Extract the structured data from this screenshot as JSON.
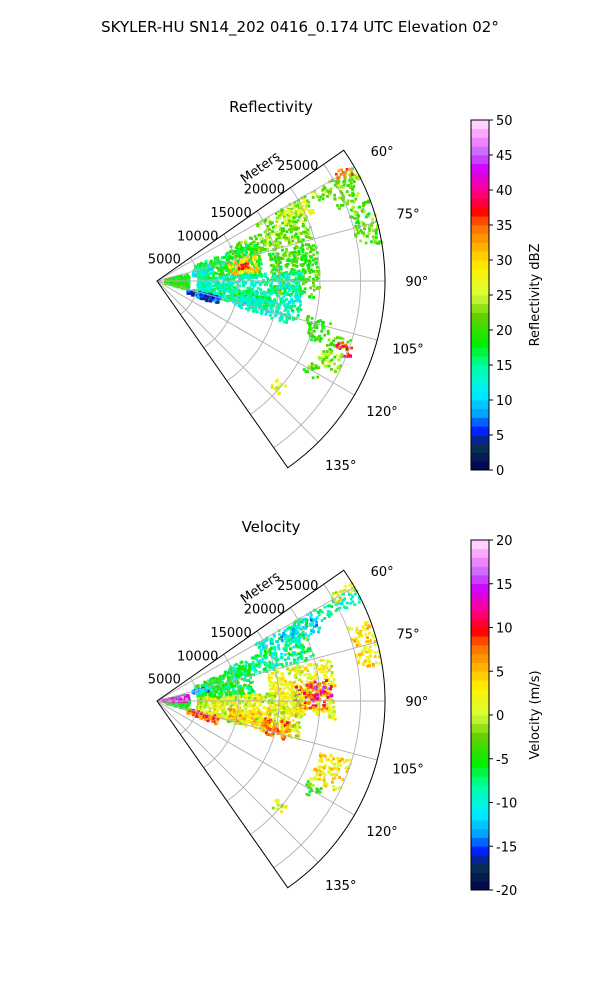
{
  "figure": {
    "title": "SKYLER-HU  SN14_202  0416_0.174 UTC Elevation 02°"
  },
  "chart_data": [
    {
      "type": "heatmap",
      "title": "Reflectivity",
      "radial_label": "Meters",
      "radial_ticks": [
        5000,
        10000,
        15000,
        20000,
        25000
      ],
      "radial_max": 28000,
      "azimuth_range_deg": [
        55,
        145
      ],
      "azimuth_ticks": [
        "60°",
        "75°",
        "90°",
        "105°",
        "120°",
        "135°"
      ],
      "colorbar": {
        "label": "Reflectivity dBZ",
        "range": [
          0,
          50
        ],
        "ticks": [
          0,
          5,
          10,
          15,
          20,
          25,
          30,
          35,
          40,
          45,
          50
        ]
      },
      "echo_regions": [
        {
          "az": 62,
          "r": [
            14000,
            28000
          ],
          "w": 2,
          "v": 22
        },
        {
          "az": 60,
          "r": [
            25500,
            27500
          ],
          "w": 1.5,
          "v": 33
        },
        {
          "az": 66,
          "r": [
            24000,
            27000
          ],
          "w": 2.5,
          "v": 22
        },
        {
          "az": 64,
          "r": [
            17000,
            21000
          ],
          "w": 3,
          "v": 26
        },
        {
          "az": 70,
          "r": [
            10000,
            20000
          ],
          "w": 5,
          "v": 22
        },
        {
          "az": 78,
          "r": [
            5000,
            13000
          ],
          "w": 10,
          "v": 18
        },
        {
          "az": 80,
          "r": [
            9000,
            12500
          ],
          "w": 5,
          "v": 30
        },
        {
          "az": 81,
          "r": [
            10000,
            11500
          ],
          "w": 2,
          "v": 36
        },
        {
          "az": 78,
          "r": [
            4500,
            7000
          ],
          "w": 5,
          "v": 13
        },
        {
          "az": 86,
          "r": [
            14000,
            20000
          ],
          "w": 10,
          "v": 20
        },
        {
          "az": 75,
          "r": [
            25000,
            28000
          ],
          "w": 6,
          "v": 21
        },
        {
          "az": 96,
          "r": [
            5000,
            18000
          ],
          "w": 10,
          "v": 14
        },
        {
          "az": 100,
          "r": [
            9000,
            14000
          ],
          "w": 4,
          "v": 16
        },
        {
          "az": 104,
          "r": [
            10000,
            17000
          ],
          "w": 4,
          "v": 13
        },
        {
          "az": 107,
          "r": [
            19000,
            22000
          ],
          "w": 4,
          "v": 20
        },
        {
          "az": 92,
          "r": [
            1000,
            4000
          ],
          "w": 14,
          "v": 19
        },
        {
          "az": 112,
          "r": [
            22000,
            25000
          ],
          "w": 5,
          "v": 22
        },
        {
          "az": 110,
          "r": [
            23500,
            25500
          ],
          "w": 2,
          "v": 38
        },
        {
          "az": 120,
          "r": [
            21000,
            23000
          ],
          "w": 2,
          "v": 21
        },
        {
          "az": 131,
          "r": [
            19000,
            20500
          ],
          "w": 2,
          "v": 27
        },
        {
          "az": 108,
          "r": [
            4000,
            8000
          ],
          "w": 4,
          "v": 6
        }
      ]
    },
    {
      "type": "heatmap",
      "title": "Velocity",
      "radial_label": "Meters",
      "radial_ticks": [
        5000,
        10000,
        15000,
        20000,
        25000
      ],
      "radial_max": 28000,
      "azimuth_range_deg": [
        55,
        145
      ],
      "azimuth_ticks": [
        "60°",
        "75°",
        "90°",
        "105°",
        "120°",
        "135°"
      ],
      "colorbar": {
        "label": "Velocity (m/s)",
        "range": [
          -20,
          20
        ],
        "ticks": [
          -20,
          -15,
          -10,
          -5,
          0,
          5,
          10,
          15,
          20
        ]
      },
      "echo_regions": [
        {
          "az": 62,
          "r": [
            14000,
            28000
          ],
          "w": 2,
          "v": -9
        },
        {
          "az": 64,
          "r": [
            17000,
            22000
          ],
          "w": 3,
          "v": -11
        },
        {
          "az": 60,
          "r": [
            25000,
            28000
          ],
          "w": 1.5,
          "v": 1
        },
        {
          "az": 70,
          "r": [
            9000,
            20000
          ],
          "w": 5,
          "v": -8
        },
        {
          "az": 78,
          "r": [
            5000,
            12000
          ],
          "w": 10,
          "v": -6
        },
        {
          "az": 76,
          "r": [
            4500,
            6500
          ],
          "w": 3,
          "v": -12
        },
        {
          "az": 86,
          "r": [
            14000,
            22000
          ],
          "w": 10,
          "v": 2
        },
        {
          "az": 88,
          "r": [
            17000,
            21000
          ],
          "w": 5,
          "v": 9
        },
        {
          "az": 87,
          "r": [
            19500,
            21500
          ],
          "w": 2,
          "v": 14
        },
        {
          "az": 96,
          "r": [
            5000,
            18000
          ],
          "w": 10,
          "v": 1
        },
        {
          "az": 100,
          "r": [
            9000,
            14000
          ],
          "w": 4,
          "v": 4
        },
        {
          "az": 103,
          "r": [
            13000,
            17000
          ],
          "w": 4,
          "v": 7
        },
        {
          "az": 108,
          "r": [
            4000,
            8000
          ],
          "w": 4,
          "v": 8
        },
        {
          "az": 92,
          "r": [
            1000,
            4000
          ],
          "w": 14,
          "v": -5
        },
        {
          "az": 85,
          "r": [
            300,
            4000
          ],
          "w": 6,
          "v": 15
        },
        {
          "az": 112,
          "r": [
            21000,
            25000
          ],
          "w": 5,
          "v": 3
        },
        {
          "az": 120,
          "r": [
            21000,
            23000
          ],
          "w": 2,
          "v": -4
        },
        {
          "az": 131,
          "r": [
            19000,
            20500
          ],
          "w": 2,
          "v": 1
        },
        {
          "az": 75,
          "r": [
            25000,
            28000
          ],
          "w": 6,
          "v": 3
        }
      ]
    }
  ]
}
